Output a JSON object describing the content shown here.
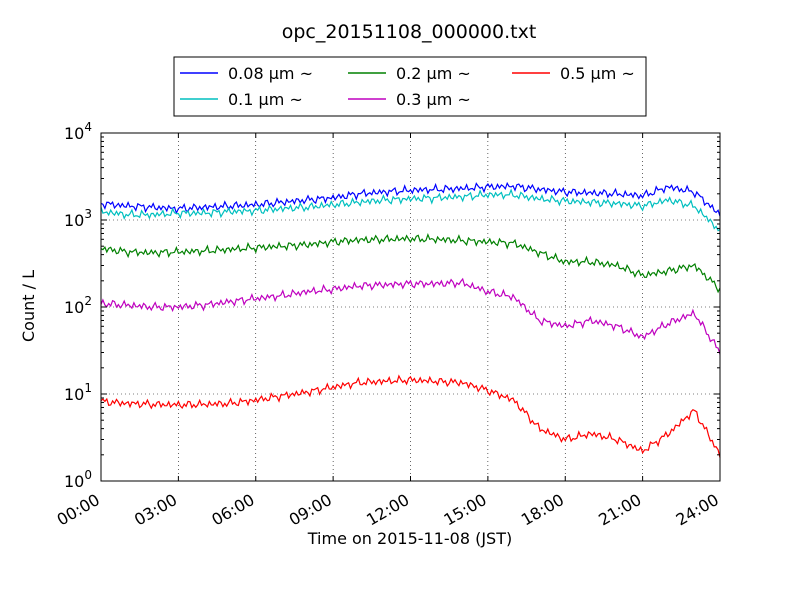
{
  "chart_data": {
    "type": "line",
    "title": "opc_20151108_000000.txt",
    "xlabel": "Time on 2015-11-08 (JST)",
    "ylabel": "Count / L",
    "x_range_hours": [
      0,
      24
    ],
    "x_tick_hours": [
      0,
      3,
      6,
      9,
      12,
      15,
      18,
      21,
      24
    ],
    "x_tick_labels": [
      "00:00",
      "03:00",
      "06:00",
      "09:00",
      "12:00",
      "15:00",
      "18:00",
      "21:00",
      "24:00"
    ],
    "yscale": "log",
    "ylim": [
      1,
      10000
    ],
    "y_ticks": [
      {
        "value": 1,
        "base": "10",
        "exp": "0"
      },
      {
        "value": 10,
        "base": "10",
        "exp": "1"
      },
      {
        "value": 100,
        "base": "10",
        "exp": "2"
      },
      {
        "value": 1000,
        "base": "10",
        "exp": "3"
      },
      {
        "value": 10000,
        "base": "10",
        "exp": "4"
      }
    ],
    "grid": true,
    "legend_position": "top-center",
    "x": [
      0,
      1,
      2,
      3,
      4,
      5,
      6,
      7,
      8,
      9,
      10,
      11,
      12,
      13,
      14,
      15,
      16,
      17,
      18,
      19,
      20,
      21,
      22,
      23,
      24
    ],
    "series": [
      {
        "name": "0.08 μm ~",
        "color": "#0000ff",
        "values": [
          1550,
          1450,
          1400,
          1350,
          1400,
          1450,
          1500,
          1600,
          1700,
          1800,
          2000,
          2100,
          2200,
          2250,
          2300,
          2400,
          2450,
          2250,
          2100,
          2050,
          2000,
          1900,
          2400,
          2100,
          1150
        ]
      },
      {
        "name": "0.1 μm ~",
        "color": "#00bfbf",
        "values": [
          1250,
          1150,
          1150,
          1200,
          1200,
          1250,
          1280,
          1350,
          1400,
          1500,
          1600,
          1700,
          1750,
          1800,
          1850,
          1950,
          1950,
          1750,
          1650,
          1600,
          1550,
          1450,
          1700,
          1450,
          750
        ]
      },
      {
        "name": "0.2 μm ~",
        "color": "#008000",
        "values": [
          470,
          430,
          420,
          430,
          440,
          460,
          480,
          500,
          520,
          560,
          590,
          600,
          610,
          600,
          580,
          560,
          540,
          420,
          330,
          330,
          300,
          230,
          260,
          300,
          160
        ]
      },
      {
        "name": "0.3 μm ~",
        "color": "#bf00bf",
        "values": [
          110,
          105,
          100,
          100,
          105,
          115,
          125,
          135,
          150,
          160,
          175,
          180,
          185,
          185,
          190,
          150,
          130,
          70,
          60,
          70,
          60,
          45,
          65,
          85,
          30
        ]
      },
      {
        "name": "0.5 μm ~",
        "color": "#ff0000",
        "values": [
          8.2,
          7.8,
          7.6,
          7.5,
          7.6,
          7.8,
          8.5,
          9.5,
          10.5,
          12.0,
          13.5,
          14.0,
          14.5,
          14.0,
          13.5,
          11.0,
          8.5,
          4.0,
          3.0,
          3.5,
          3.0,
          2.2,
          3.5,
          6.5,
          2.0
        ]
      }
    ]
  }
}
